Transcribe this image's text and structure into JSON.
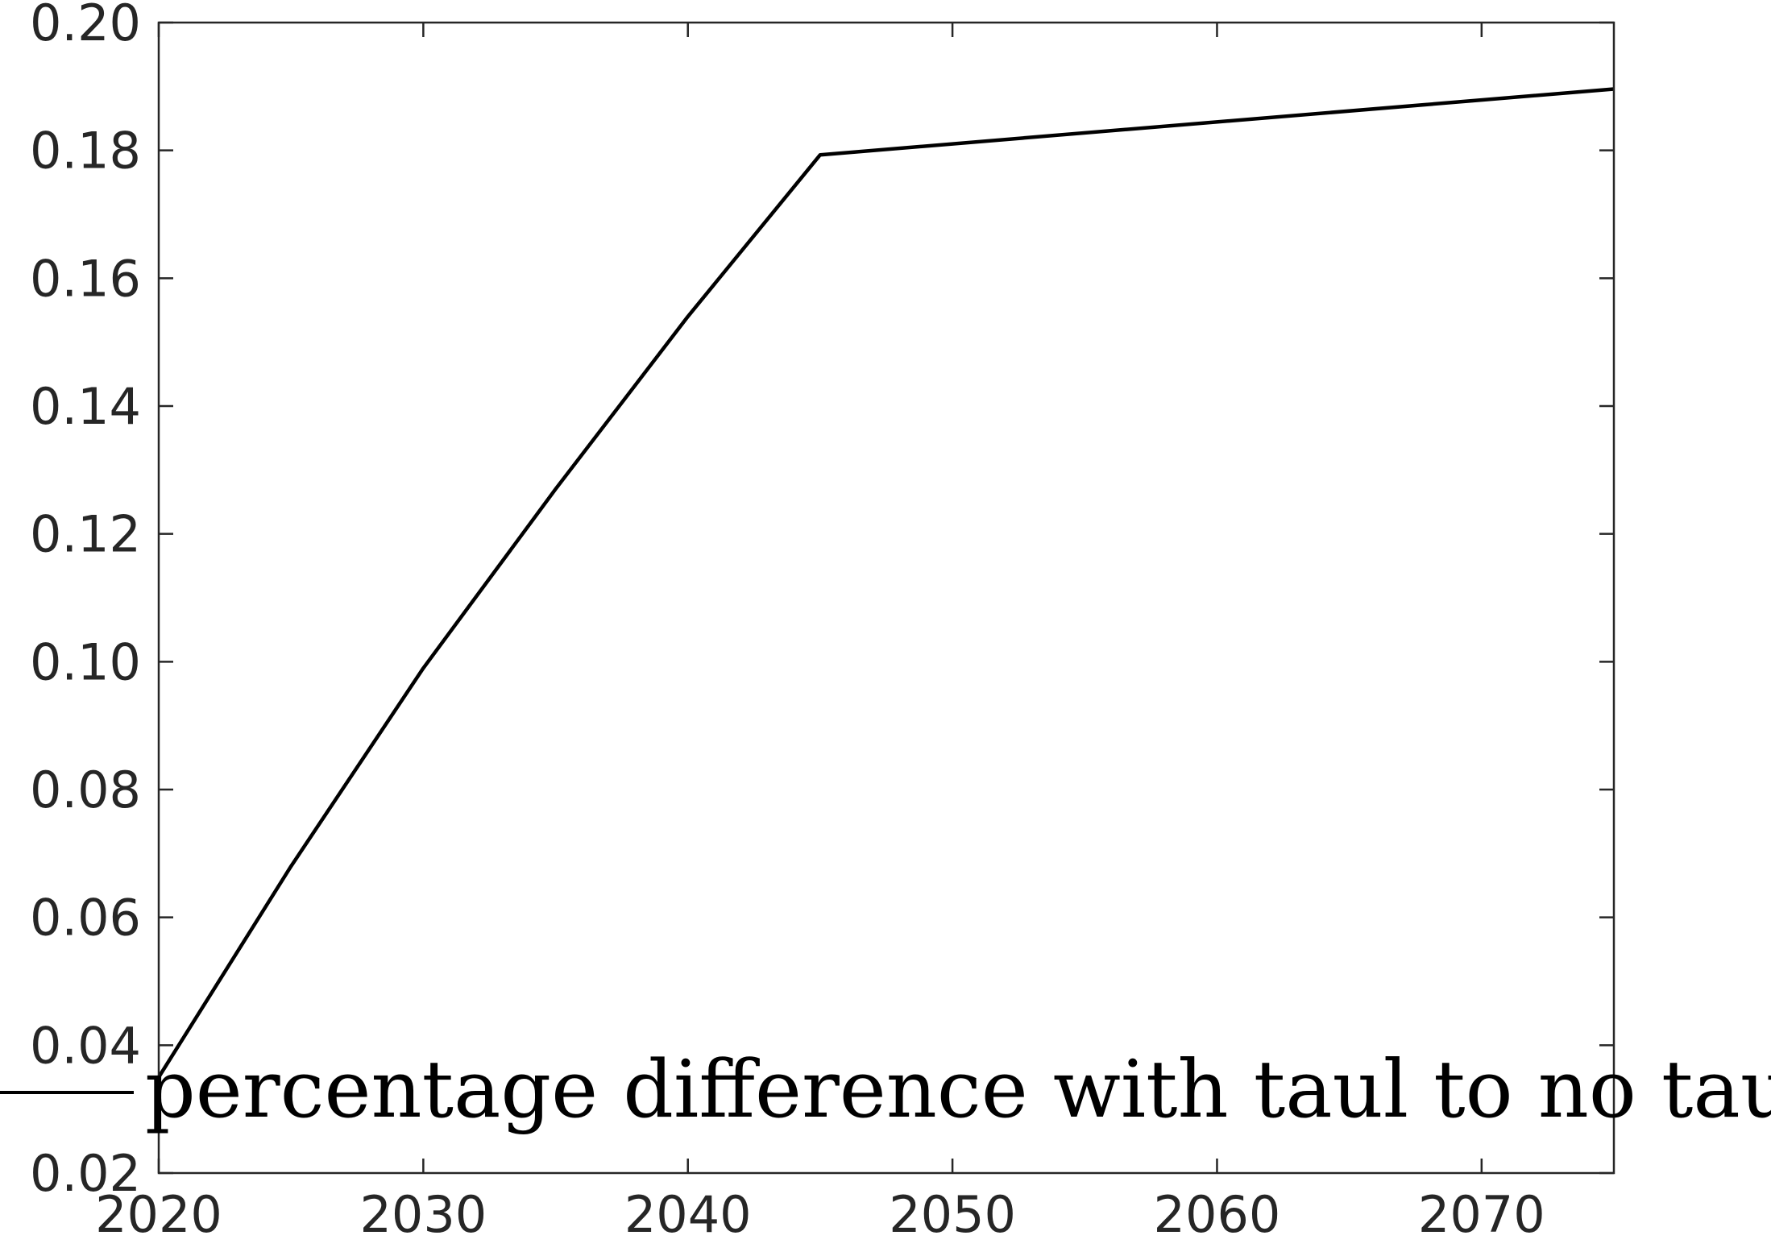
{
  "chart_data": {
    "type": "line",
    "title": "",
    "xlabel": "",
    "ylabel": "",
    "xlim": [
      2020,
      2075
    ],
    "ylim": [
      0.02,
      0.2
    ],
    "x_ticks": [
      2020,
      2030,
      2040,
      2050,
      2060,
      2070
    ],
    "x_tick_labels": [
      "2020",
      "2030",
      "2040",
      "2050",
      "2060",
      "2070"
    ],
    "y_ticks": [
      0.02,
      0.04,
      0.06,
      0.08,
      0.1,
      0.12,
      0.14,
      0.16,
      0.18,
      0.2
    ],
    "y_tick_labels": [
      "0.02",
      "0.04",
      "0.06",
      "0.08",
      "0.10",
      "0.12",
      "0.14",
      "0.16",
      "0.18",
      "0.20"
    ],
    "grid": false,
    "legend_position": "bottom",
    "series": [
      {
        "name": "percentage difference with taul to no taul",
        "color": "#000000",
        "x": [
          2020,
          2025,
          2030,
          2035,
          2040,
          2045,
          2075
        ],
        "y": [
          0.035,
          0.068,
          0.099,
          0.127,
          0.154,
          0.1793,
          0.1896
        ]
      }
    ]
  }
}
